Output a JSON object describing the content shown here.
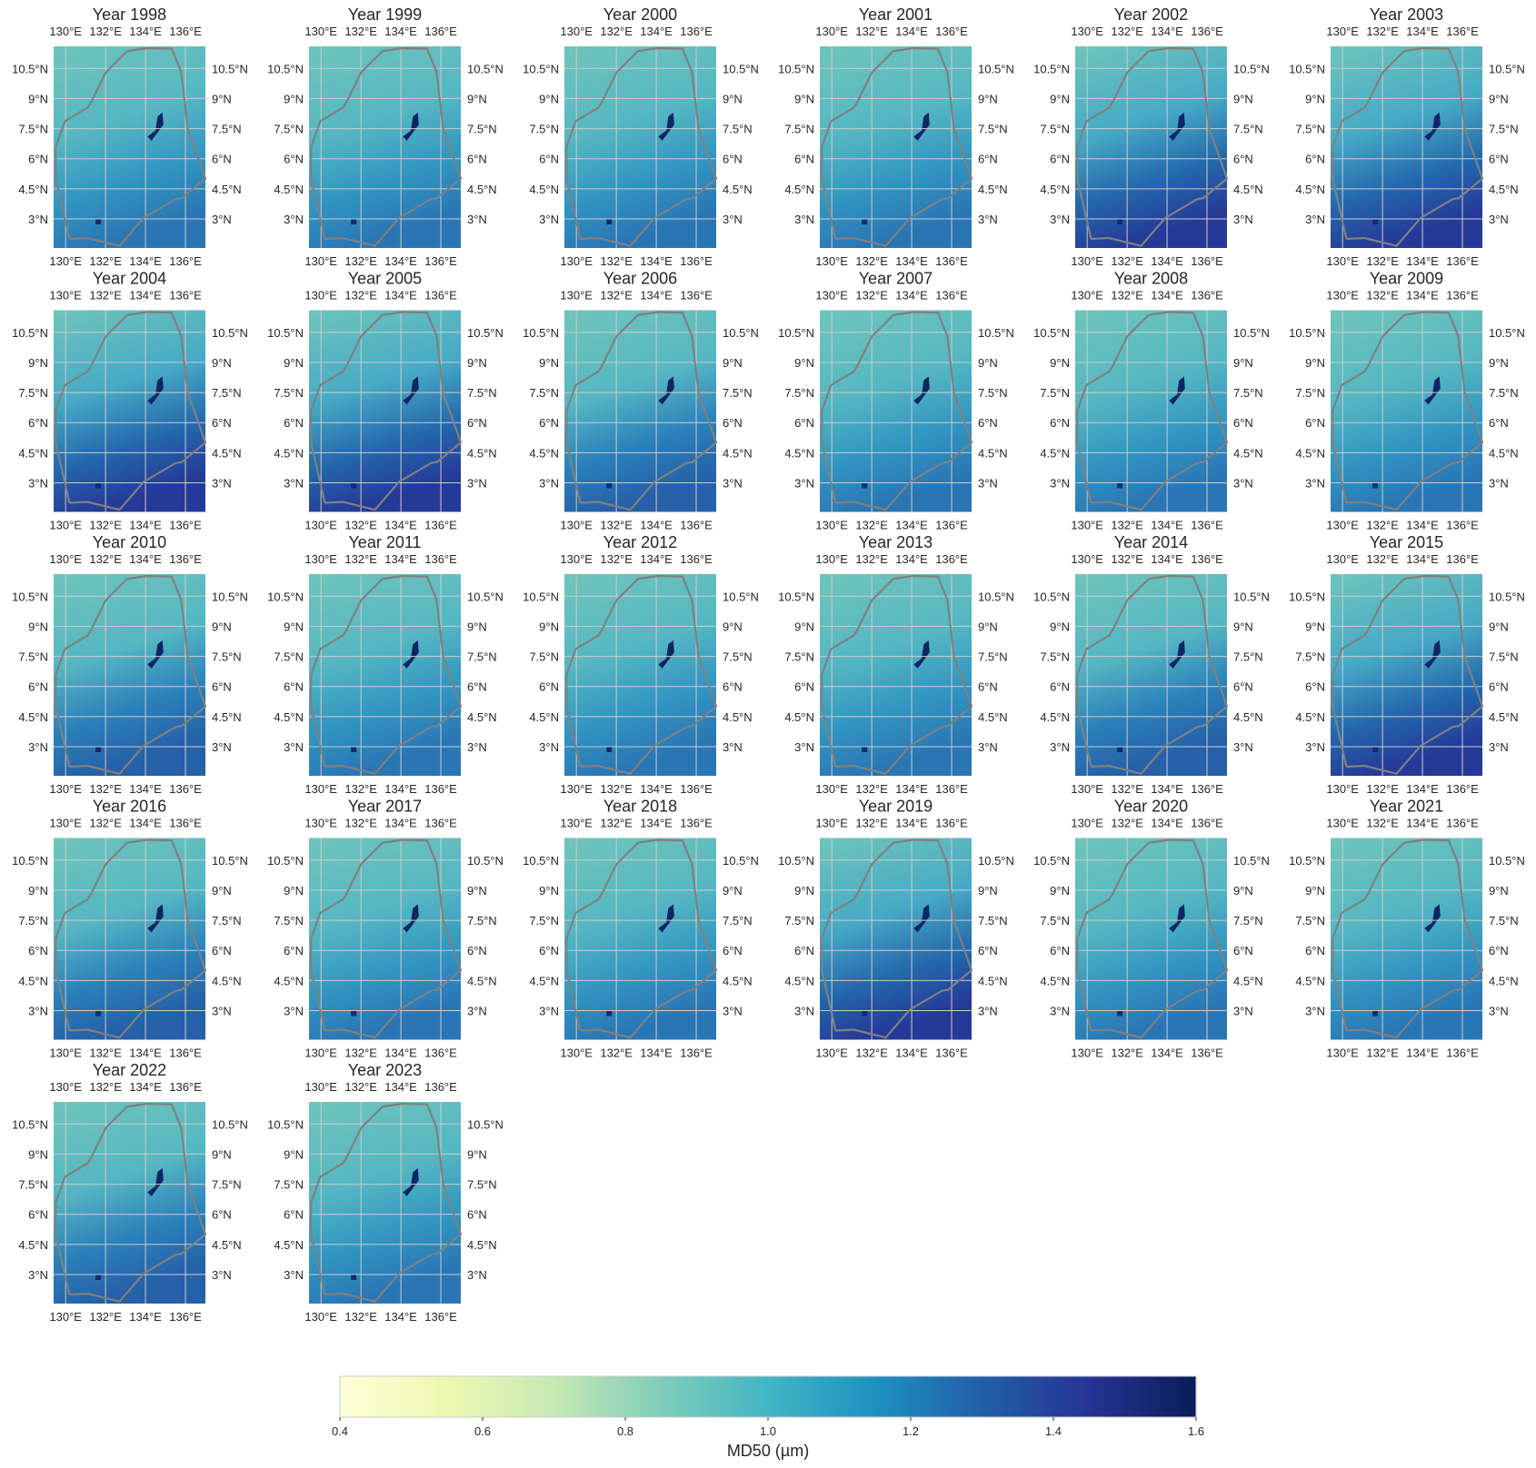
{
  "chart_data": {
    "type": "heatmap",
    "panel_title_prefix": "Year",
    "years": [
      1998,
      1999,
      2000,
      2001,
      2002,
      2003,
      2004,
      2005,
      2006,
      2007,
      2008,
      2009,
      2010,
      2011,
      2012,
      2013,
      2014,
      2015,
      2016,
      2017,
      2018,
      2019,
      2020,
      2021,
      2022,
      2023
    ],
    "lon_ticks": [
      "130°E",
      "132°E",
      "134°E",
      "136°E"
    ],
    "lon_tick_values": [
      130,
      132,
      134,
      136
    ],
    "lat_ticks": [
      "10.5°N",
      "9°N",
      "7.5°N",
      "6°N",
      "4.5°N",
      "3°N"
    ],
    "lat_tick_values": [
      10.5,
      9,
      7.5,
      6,
      4.5,
      3
    ],
    "lon_range": [
      129.4,
      137.0
    ],
    "lat_range": [
      1.55,
      11.6
    ],
    "grid": true,
    "colorbar": {
      "label": "MD50 (µm)",
      "colormap": "YlGnBu",
      "vmin": 0.4,
      "vmax": 1.6,
      "ticks": [
        "0.4",
        "0.6",
        "0.8",
        "1.0",
        "1.2",
        "1.4",
        "1.6"
      ],
      "tick_values": [
        0.4,
        0.6,
        0.8,
        1.0,
        1.2,
        1.4,
        1.6
      ],
      "orientation": "horizontal",
      "placement": "bottom"
    },
    "colors": {
      "boundary": "#808080",
      "grid": "#cccccc",
      "cmap_stops": [
        "#ffffd9",
        "#edf8b1",
        "#c7e9b4",
        "#7fcdbb",
        "#41b6c4",
        "#1d91c0",
        "#225ea8",
        "#253494",
        "#081d58"
      ]
    }
  }
}
